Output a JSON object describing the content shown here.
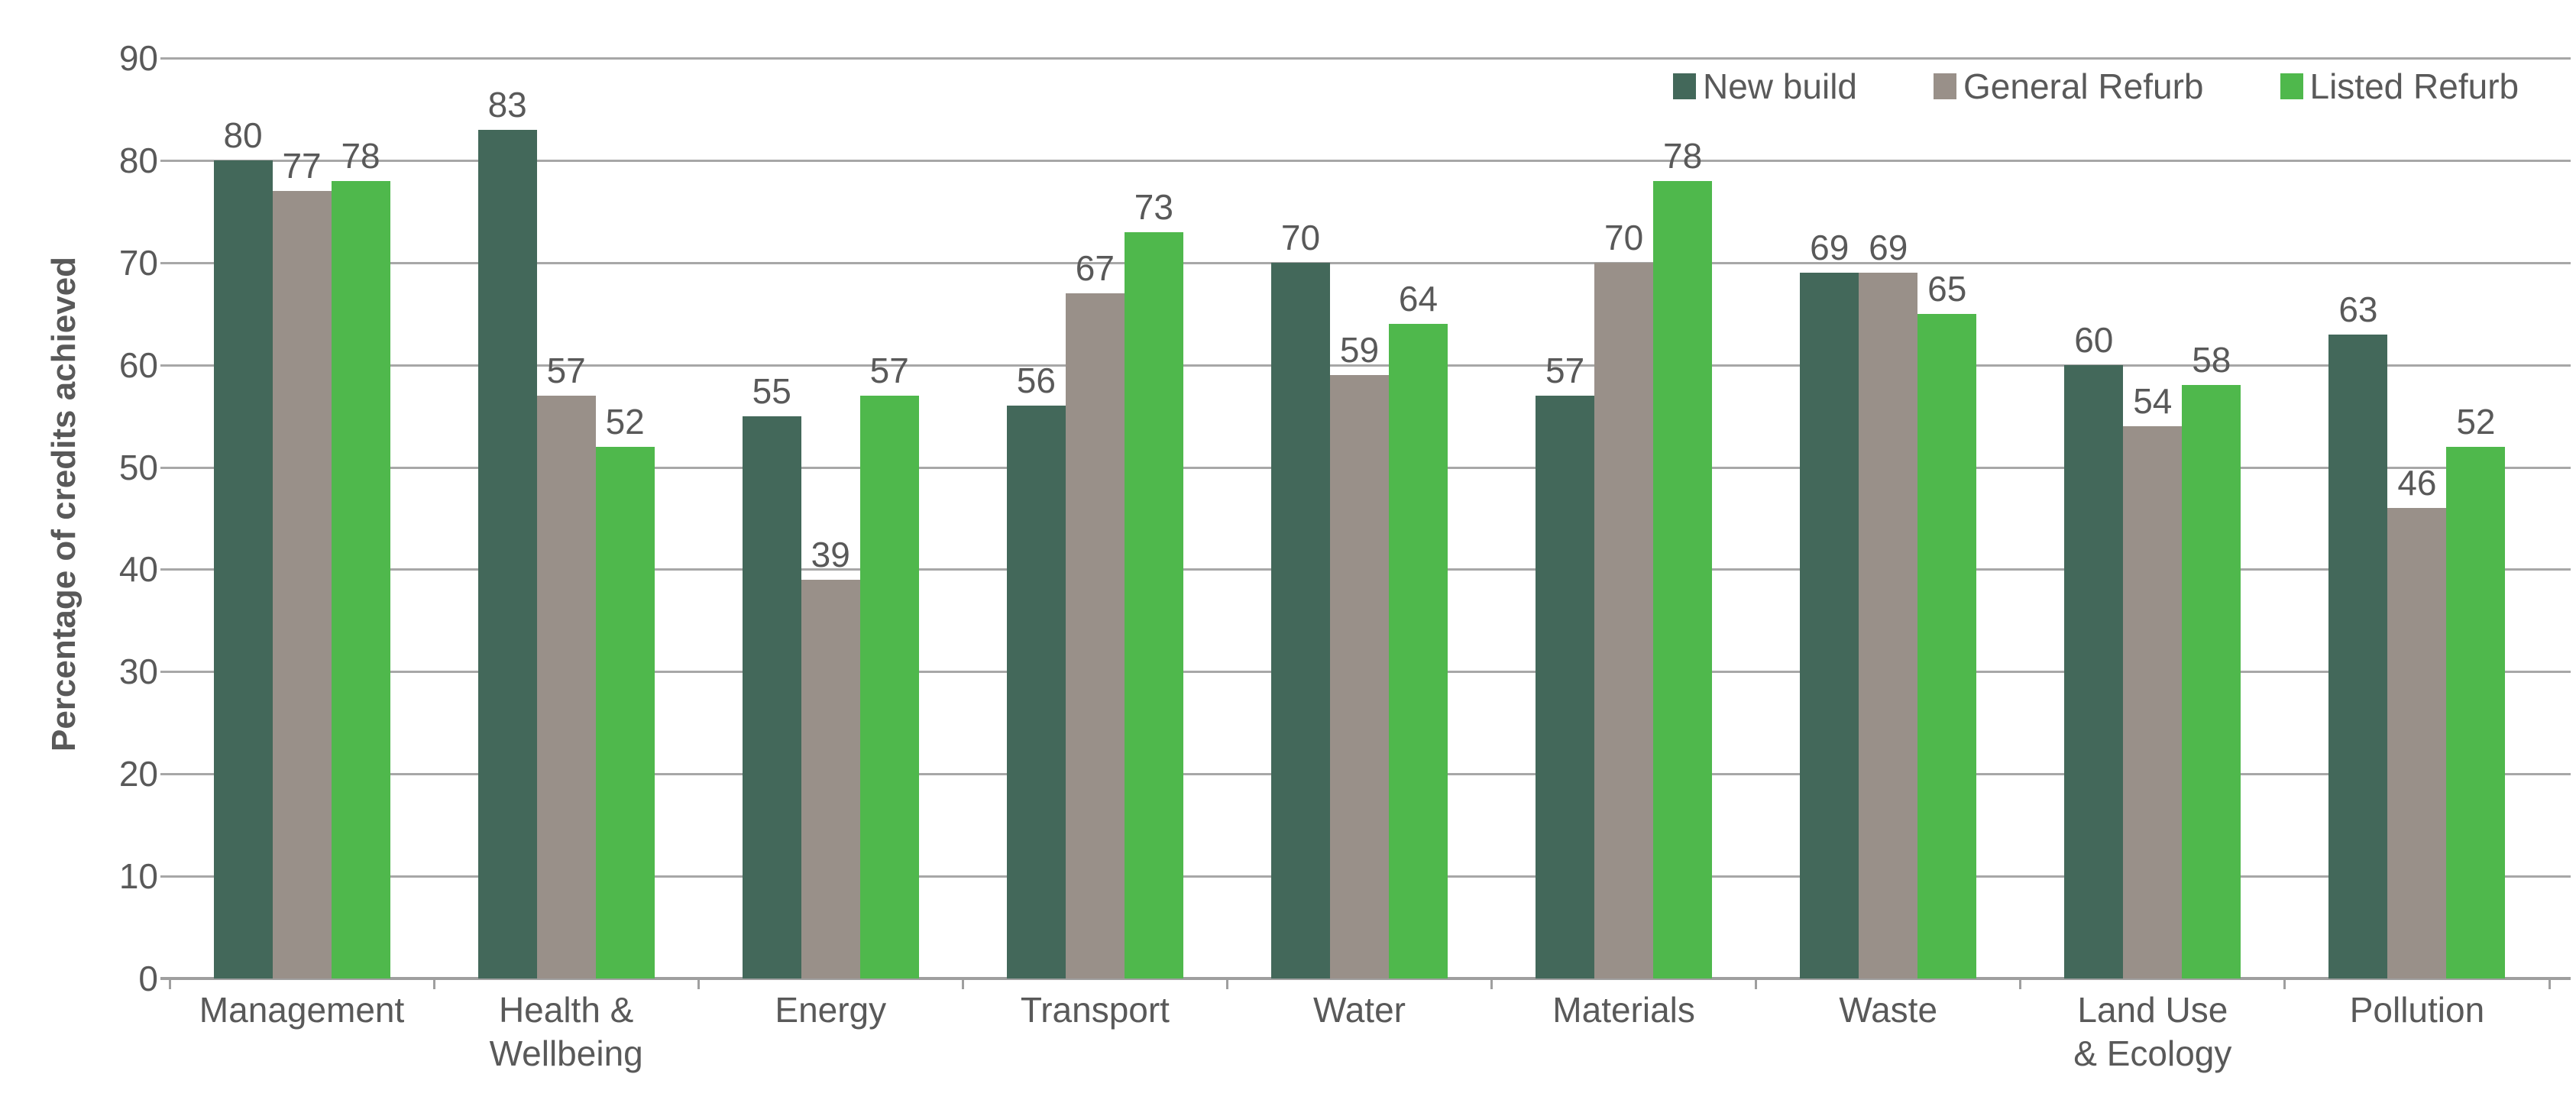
{
  "chart_data": {
    "type": "bar",
    "title": "",
    "ylabel": "Percentage of credits achieved",
    "xlabel": "",
    "ylim": [
      0,
      90
    ],
    "ytick_step": 10,
    "grid": "horizontal",
    "legend_position": "top-right",
    "data_labels": true,
    "categories": [
      "Management",
      "Health &\nWellbeing",
      "Energy",
      "Transport",
      "Water",
      "Materials",
      "Waste",
      "Land Use\n& Ecology",
      "Pollution"
    ],
    "series": [
      {
        "name": "New build",
        "color": "#43685A",
        "values": [
          80,
          83,
          55,
          56,
          70,
          57,
          69,
          60,
          63
        ]
      },
      {
        "name": "General Refurb",
        "color": "#999089",
        "values": [
          77,
          57,
          39,
          67,
          59,
          70,
          69,
          54,
          46
        ]
      },
      {
        "name": "Listed Refurb",
        "color": "#4FB84C",
        "values": [
          78,
          52,
          57,
          73,
          64,
          78,
          65,
          58,
          52
        ]
      }
    ],
    "colors": {
      "gridline": "#a7a7a7",
      "axis_line": "#9f9f9f",
      "text": "#595959"
    }
  }
}
